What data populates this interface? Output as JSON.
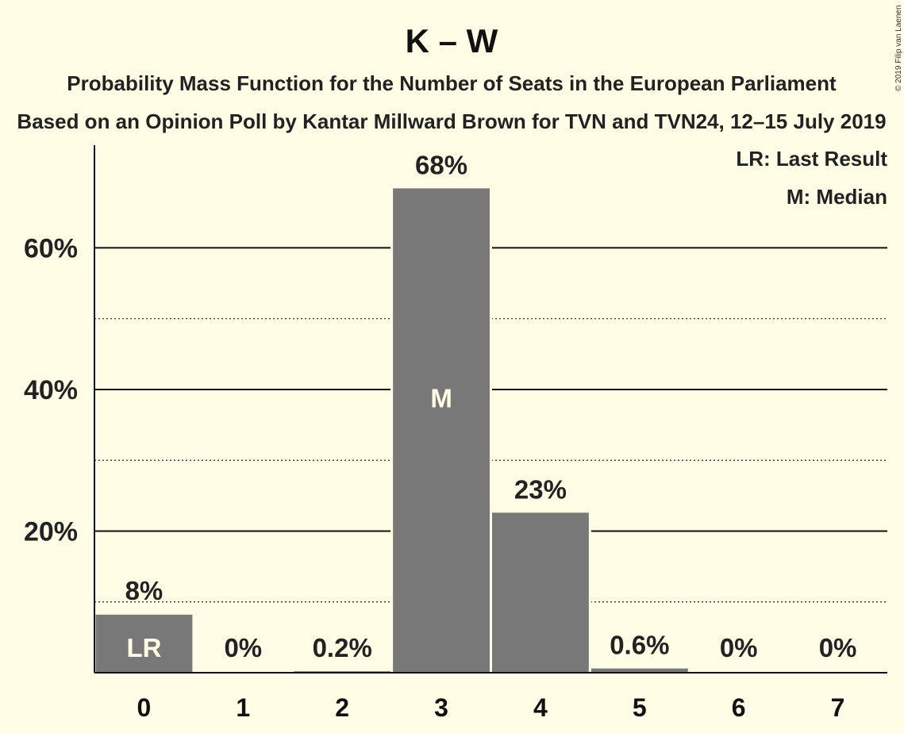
{
  "chart_data": {
    "type": "bar",
    "title": "K – W",
    "subtitle": "Probability Mass Function for the Number of Seats in the European Parliament",
    "subtitle2": "Based on an Opinion Poll by Kantar Millward Brown for TVN and TVN24, 12–15 July 2019",
    "copyright": "© 2019 Filip van Laenen",
    "categories": [
      "0",
      "1",
      "2",
      "3",
      "4",
      "5",
      "6",
      "7"
    ],
    "values": [
      8.2,
      0,
      0.2,
      68.4,
      22.6,
      0.6,
      0,
      0
    ],
    "value_labels": [
      "8%",
      "0%",
      "0.2%",
      "68%",
      "23%",
      "0.6%",
      "0%",
      "0%"
    ],
    "inner_labels": [
      "LR",
      "",
      "",
      "M",
      "",
      "",
      "",
      ""
    ],
    "ylim": [
      0,
      74.5
    ],
    "yticks": [
      20,
      40,
      60
    ],
    "ytick_labels": [
      "20%",
      "40%",
      "60%"
    ],
    "minor_gridlines": [
      10,
      30,
      50
    ],
    "legend": [
      "LR: Last Result",
      "M: Median"
    ],
    "legend_position": "top-right",
    "bar_color": "#787878",
    "background_color": "#fffde6",
    "grid": true
  }
}
